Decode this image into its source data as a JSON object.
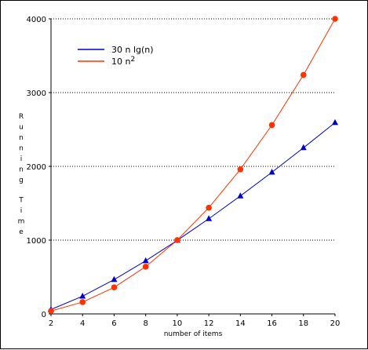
{
  "chart_data": {
    "type": "line",
    "xlabel": "number of items",
    "ylabel": "Running Time",
    "x": [
      2,
      4,
      6,
      8,
      10,
      12,
      14,
      16,
      18,
      20
    ],
    "xlim": [
      2,
      20
    ],
    "ylim": [
      0,
      4000
    ],
    "xticks": [
      "2",
      "4",
      "6",
      "8",
      "10",
      "12",
      "14",
      "16",
      "18",
      "20"
    ],
    "yticks": [
      "0",
      "1000",
      "2000",
      "3000",
      "4000"
    ],
    "grid": "horizontal dotted",
    "legend_position": "top-left",
    "series": [
      {
        "name_main": "30 n lg(n)",
        "name_super": "",
        "color": "#0000cc",
        "marker": "triangle",
        "values": [
          60,
          240,
          465,
          720,
          997,
          1290,
          1599,
          1920,
          2252,
          2593
        ]
      },
      {
        "name_main": "10 n",
        "name_super": "2",
        "color": "#ff3300",
        "marker": "circle",
        "values": [
          40,
          160,
          360,
          640,
          1000,
          1440,
          1960,
          2560,
          3240,
          4000
        ]
      }
    ]
  }
}
